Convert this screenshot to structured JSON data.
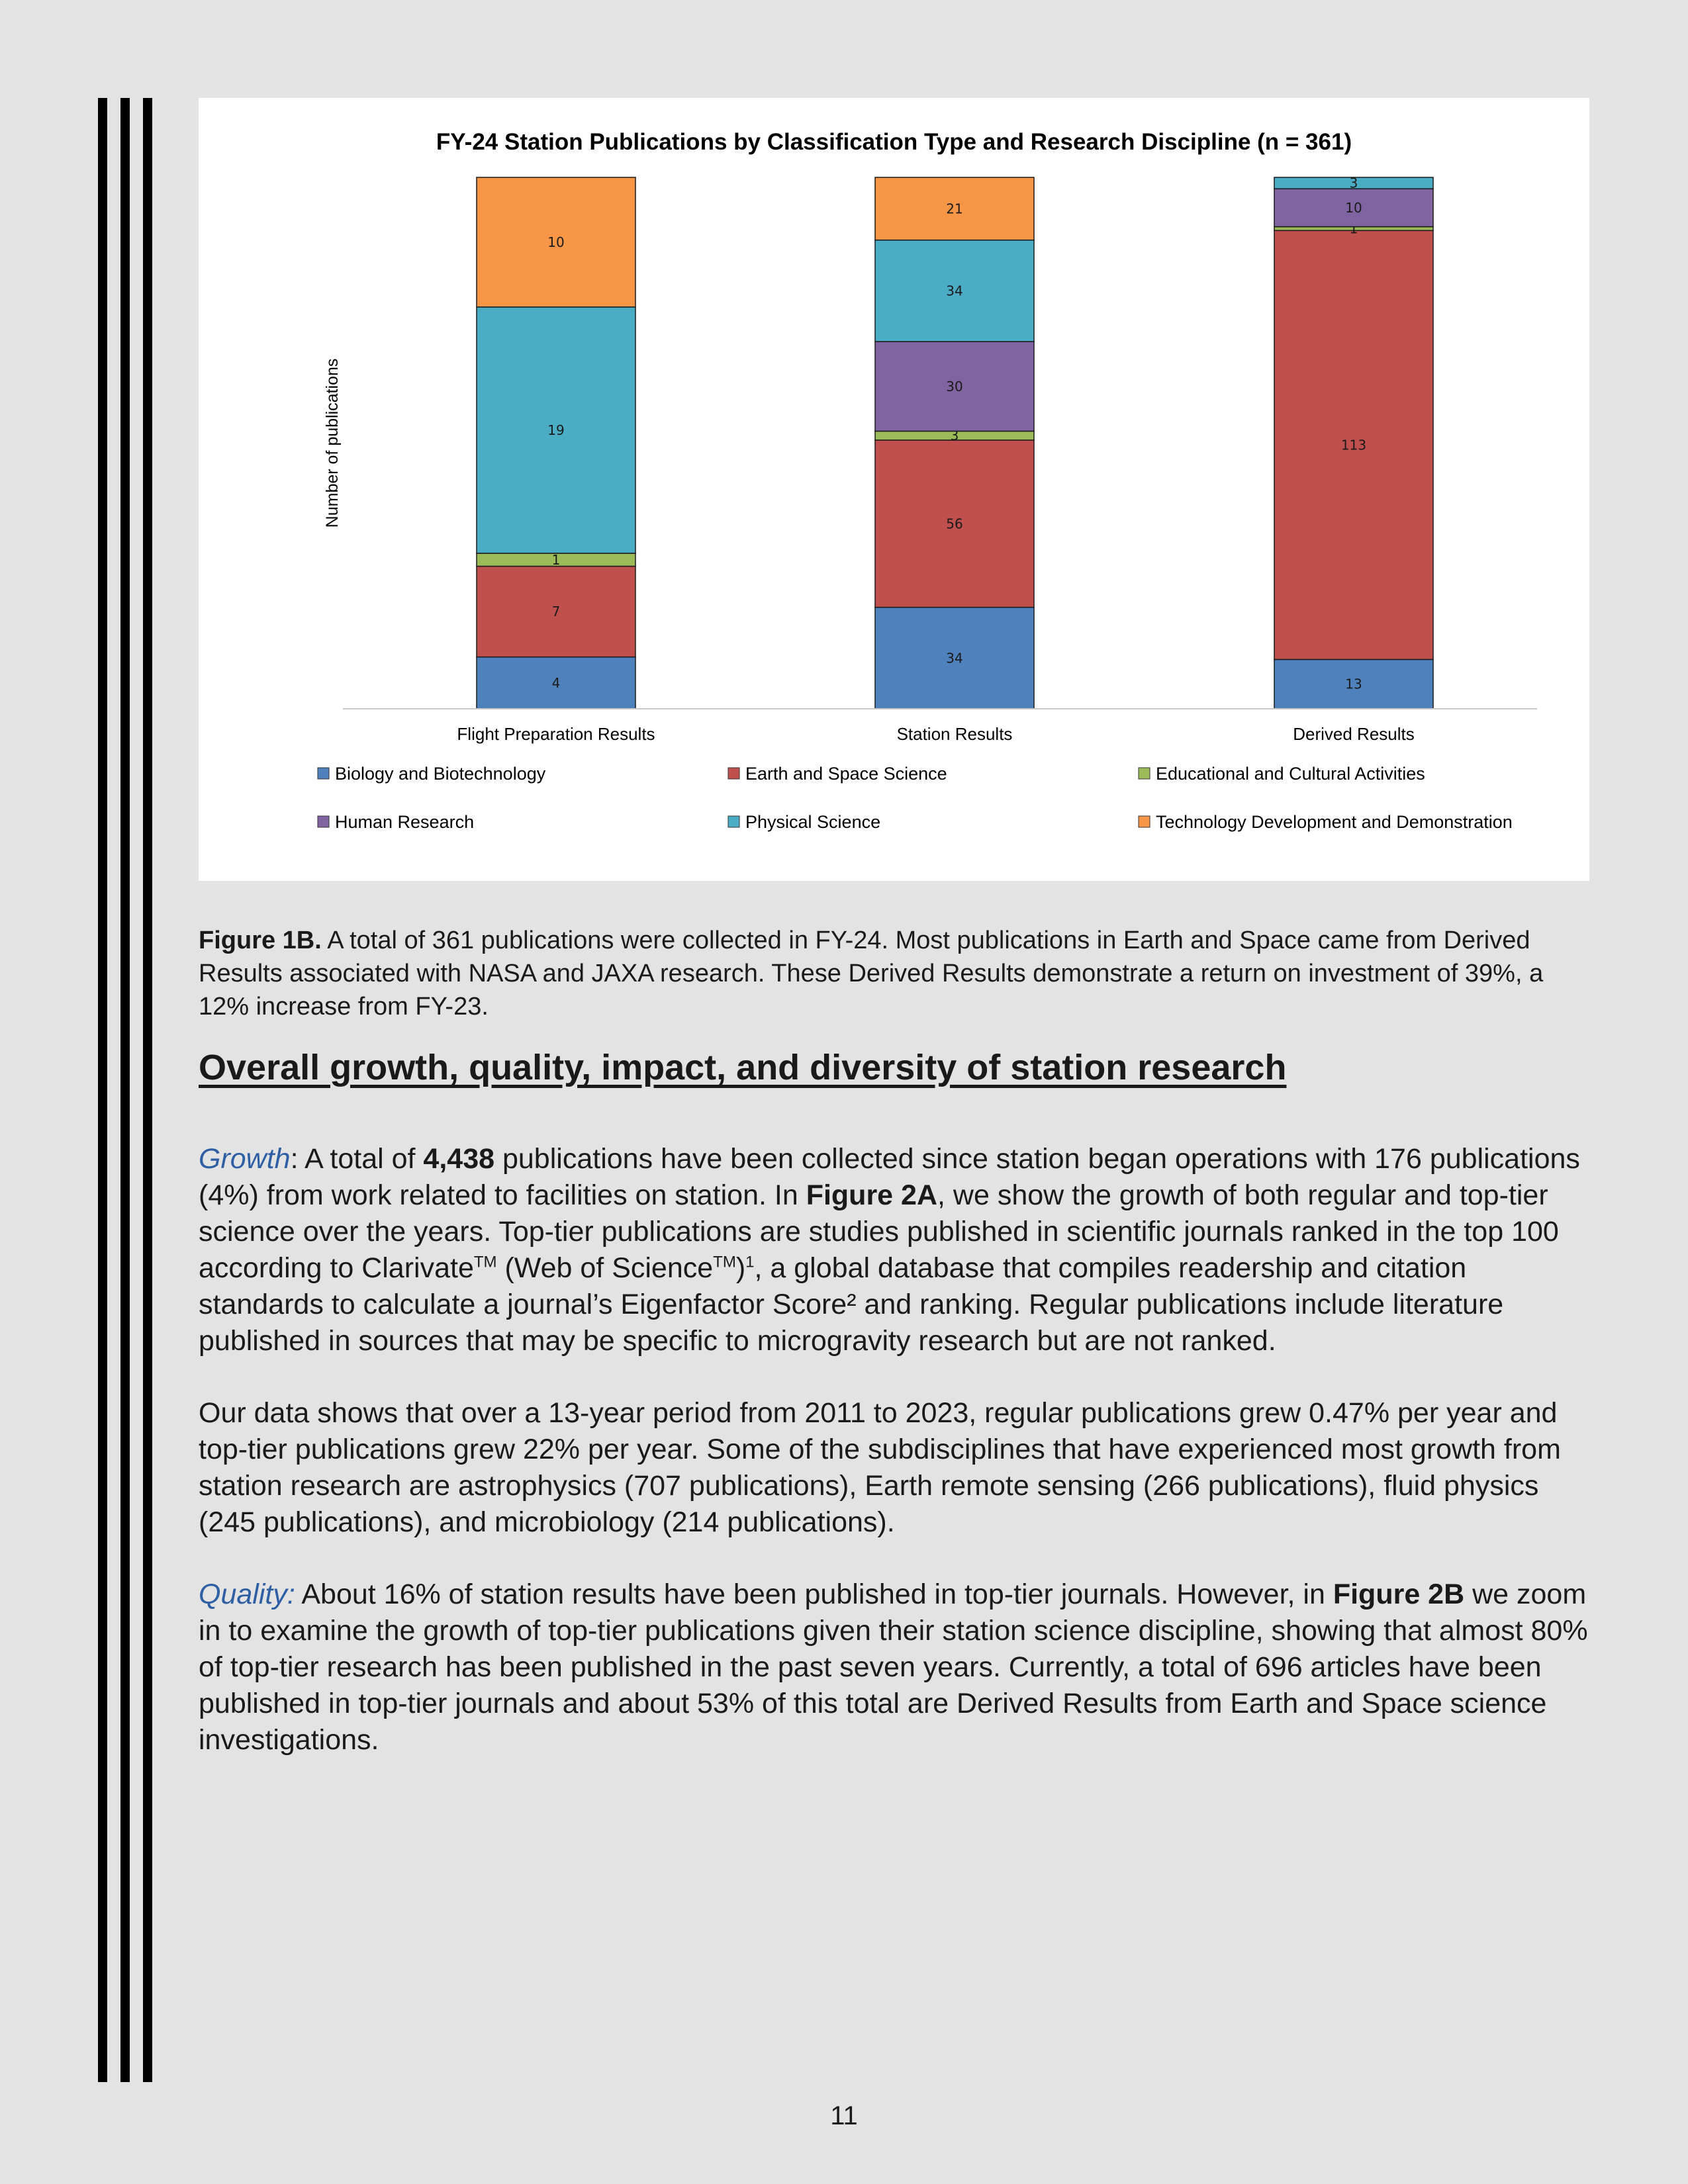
{
  "chart_data": {
    "type": "bar",
    "stacked": true,
    "title": "FY-24 Station Publications by Classification Type and Research Discipline (n = 361)",
    "ylabel": "Number of publications",
    "xlabel": "",
    "categories": [
      "Flight Preparation Results",
      "Station Results",
      "Derived Results"
    ],
    "series": [
      {
        "name": "Biology and Biotechnology",
        "color": "#4f81bd",
        "values": [
          4,
          34,
          13
        ]
      },
      {
        "name": "Earth and Space Science",
        "color": "#c0504d",
        "values": [
          7,
          56,
          113
        ]
      },
      {
        "name": "Educational and Cultural Activities",
        "color": "#9bbb59",
        "values": [
          1,
          3,
          1
        ]
      },
      {
        "name": "Human Research",
        "color": "#8064a2",
        "values": [
          0,
          30,
          10
        ]
      },
      {
        "name": "Physical Science",
        "color": "#4bacc6",
        "values": [
          19,
          34,
          3
        ]
      },
      {
        "name": "Technology Development and Demonstration",
        "color": "#f79646",
        "values": [
          10,
          21,
          0
        ]
      }
    ],
    "normalized_to_100_percent": true,
    "legend_position": "bottom",
    "grid": false
  },
  "caption": {
    "label": "Figure 1B.",
    "text": " A total of 361 publications were collected in FY-24. Most publications in Earth and Space came from Derived Results associated with NASA and JAXA research. These Derived Results demonstrate a return on investment of 39%, a 12% increase from FY-23."
  },
  "heading": "Overall growth, quality, impact, and diversity of station research",
  "growth": {
    "lead": "Growth",
    "t1": ": A total of ",
    "b1": "4,438",
    "t2": " publications have been collected since station began operations with 176 publications (4%) from work related to facilities on station. In ",
    "b2": "Figure 2A",
    "t3": ", we show the growth of both regular and top-tier science over the years. Top-tier publications are studies published in scientific journals ranked in the top 100 according to Clarivate",
    "tm1": "TM",
    "t4": " (Web of Science",
    "tm2": "TM",
    "t5": ")",
    "fn1": "1",
    "t6": ", a global database that compiles readership and citation standards to calculate a journal’s Eigenfactor Score² and ranking. Regular publications include literature published in sources that may be specific to microgravity research but are not ranked."
  },
  "data_paragraph": "Our data shows that over a 13-year period from 2011 to 2023, regular publications grew 0.47% per year and top-tier publications grew 22% per year. Some of the subdisciplines that have experienced most growth from station research are astrophysics (707 publications), Earth remote sensing (266 publications), fluid physics (245 publications), and microbiology (214 publications).",
  "quality": {
    "lead": "Quality:",
    "t1": " About 16% of station results have been published in top-tier journals. However, in ",
    "b1": "Figure 2B",
    "t2": " we zoom in to examine the growth of top-tier publications given their station science discipline, showing that almost 80% of top-tier research has been published in the past seven years. Currently, a total of 696 articles have been published in top-tier journals and about 53% of this total are Derived Results from Earth and Space science investigations."
  },
  "page_number": "11"
}
